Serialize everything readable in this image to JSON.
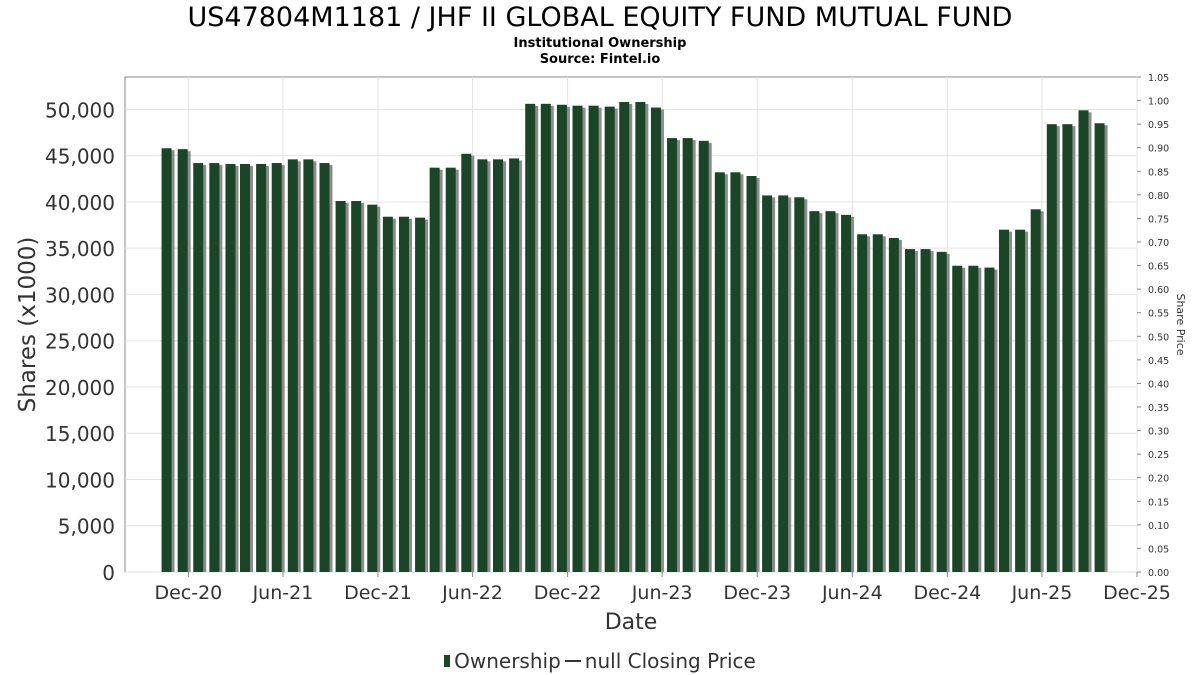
{
  "title": "US47804M1181 / JHF II GLOBAL EQUITY FUND MUTUAL FUND",
  "subtitle": "Institutional Ownership",
  "source": "Source: Fintel.io",
  "legend": {
    "ownership": "Ownership",
    "price": "null Closing Price"
  },
  "colors": {
    "bar": "#1a4526",
    "bar_shadow": "#8c8c8c",
    "grid": "#e3e3e3",
    "axis": "#888888",
    "tick_text": "#333333"
  },
  "chart_data": {
    "type": "bar",
    "title": "US47804M1181 / JHF II GLOBAL EQUITY FUND MUTUAL FUND",
    "subtitle": "Institutional Ownership",
    "xlabel": "Date",
    "ylabel": "Shares (x1000)",
    "y2label": "Share Price",
    "ylim": [
      0,
      53500
    ],
    "y2lim": [
      0,
      1.05
    ],
    "grid": true,
    "legend_position": "bottom",
    "xlim": [
      "2020-08-01",
      "2025-12-01"
    ],
    "x_ticks": [
      {
        "label": "Dec-20",
        "date": "2020-12-01"
      },
      {
        "label": "Jun-21",
        "date": "2021-06-01"
      },
      {
        "label": "Dec-21",
        "date": "2021-12-01"
      },
      {
        "label": "Jun-22",
        "date": "2022-06-01"
      },
      {
        "label": "Dec-22",
        "date": "2022-12-01"
      },
      {
        "label": "Jun-23",
        "date": "2023-06-01"
      },
      {
        "label": "Dec-23",
        "date": "2023-12-01"
      },
      {
        "label": "Jun-24",
        "date": "2024-06-01"
      },
      {
        "label": "Dec-24",
        "date": "2024-12-01"
      },
      {
        "label": "Jun-25",
        "date": "2025-06-01"
      },
      {
        "label": "Dec-25",
        "date": "2025-12-01"
      }
    ],
    "y_ticks": [
      "0",
      "5,000",
      "10,000",
      "15,000",
      "20,000",
      "25,000",
      "30,000",
      "35,000",
      "40,000",
      "45,000",
      "50,000"
    ],
    "y_tick_values": [
      0,
      5000,
      10000,
      15000,
      20000,
      25000,
      30000,
      35000,
      40000,
      45000,
      50000
    ],
    "y2_ticks": [
      "0.00",
      "0.05",
      "0.10",
      "0.15",
      "0.20",
      "0.25",
      "0.30",
      "0.35",
      "0.40",
      "0.45",
      "0.50",
      "0.55",
      "0.60",
      "0.65",
      "0.70",
      "0.75",
      "0.80",
      "0.85",
      "0.90",
      "0.95",
      "1.00",
      "1.05"
    ],
    "series": [
      {
        "name": "Ownership",
        "x": [
          "2020-10-20",
          "2020-11-20",
          "2020-12-20",
          "2021-01-20",
          "2021-02-20",
          "2021-03-20",
          "2021-04-20",
          "2021-05-20",
          "2021-06-20",
          "2021-07-20",
          "2021-08-20",
          "2021-09-20",
          "2021-10-20",
          "2021-11-20",
          "2021-12-20",
          "2022-01-20",
          "2022-02-20",
          "2022-03-20",
          "2022-04-20",
          "2022-05-20",
          "2022-06-20",
          "2022-07-20",
          "2022-08-20",
          "2022-09-20",
          "2022-10-20",
          "2022-11-20",
          "2022-12-20",
          "2023-01-20",
          "2023-02-20",
          "2023-03-20",
          "2023-04-20",
          "2023-05-20",
          "2023-06-20",
          "2023-07-20",
          "2023-08-20",
          "2023-09-20",
          "2023-10-20",
          "2023-11-20",
          "2023-12-20",
          "2024-01-20",
          "2024-02-20",
          "2024-03-20",
          "2024-04-20",
          "2024-05-20",
          "2024-06-20",
          "2024-07-20",
          "2024-08-20",
          "2024-09-20",
          "2024-10-20",
          "2024-11-20",
          "2024-12-20",
          "2025-01-20",
          "2025-02-20",
          "2025-03-20",
          "2025-04-20",
          "2025-05-20",
          "2025-06-20",
          "2025-07-20",
          "2025-08-20",
          "2025-09-20"
        ],
        "values": [
          45800,
          45700,
          44200,
          44200,
          44100,
          44100,
          44100,
          44200,
          44600,
          44600,
          44200,
          40100,
          40100,
          39700,
          38400,
          38400,
          38300,
          43700,
          43700,
          45200,
          44600,
          44600,
          44700,
          50600,
          50600,
          50500,
          50400,
          50400,
          50300,
          50800,
          50800,
          50200,
          46900,
          46900,
          46600,
          43200,
          43200,
          42800,
          40700,
          40700,
          40500,
          39000,
          39000,
          38600,
          36500,
          36500,
          36100,
          34900,
          34900,
          34600,
          33100,
          33100,
          32900,
          37000,
          37000,
          39200,
          48400,
          48400,
          49900,
          48500
        ]
      }
    ]
  }
}
